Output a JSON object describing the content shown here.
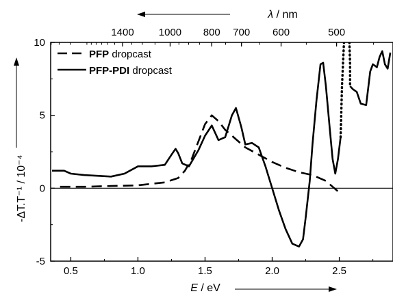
{
  "chart_data": {
    "type": "line",
    "title": "",
    "xlabel": {
      "italic": "E",
      "rest": " / eV"
    },
    "ylabel": "-ΔT.T⁻¹ / 10⁻⁴",
    "top_axis_label": {
      "italic": "λ",
      "rest": " / nm"
    },
    "xlim": [
      0.35,
      2.9
    ],
    "ylim": [
      -5,
      10
    ],
    "x_ticks": [
      0.5,
      1.0,
      1.5,
      2.0,
      2.5
    ],
    "x_tick_labels": [
      "0.5",
      "1.0",
      "1.5",
      "2.0",
      "2.5"
    ],
    "y_ticks": [
      -5,
      0,
      5,
      10
    ],
    "y_tick_labels": [
      "-5",
      "0",
      "5",
      "10"
    ],
    "top_ticks_nm": [
      1400,
      1000,
      800,
      700,
      600,
      500
    ],
    "top_tick_labels": [
      "1400",
      "1000",
      "800",
      "700",
      "600",
      "500"
    ],
    "zero_line": true,
    "legend_position": "top-left",
    "series": [
      {
        "name": "PFP dropcast",
        "name_bold": "PFP",
        "name_rest": " dropcast",
        "style": "dashed",
        "x": [
          0.42,
          0.6,
          0.8,
          1.0,
          1.1,
          1.2,
          1.3,
          1.35,
          1.4,
          1.45,
          1.5,
          1.55,
          1.6,
          1.65,
          1.7,
          1.75,
          1.8,
          1.9,
          2.0,
          2.1,
          2.2,
          2.3,
          2.4,
          2.45,
          2.5
        ],
        "y": [
          0.1,
          0.1,
          0.15,
          0.2,
          0.3,
          0.4,
          0.7,
          1.2,
          2.0,
          3.2,
          4.4,
          5.0,
          4.6,
          4.0,
          3.6,
          3.2,
          2.8,
          2.3,
          1.8,
          1.4,
          1.1,
          0.9,
          0.5,
          0.1,
          -0.3
        ]
      },
      {
        "name": "PFP-PDI dropcast",
        "name_bold": "PFP-PDI",
        "name_rest": " dropcast",
        "style": "solid",
        "x": [
          0.36,
          0.45,
          0.5,
          0.6,
          0.7,
          0.8,
          0.9,
          1.0,
          1.1,
          1.2,
          1.25,
          1.28,
          1.3,
          1.33,
          1.38,
          1.45,
          1.5,
          1.55,
          1.6,
          1.65,
          1.7,
          1.73,
          1.77,
          1.8,
          1.85,
          1.9,
          1.95,
          2.0,
          2.05,
          2.1,
          2.15,
          2.2,
          2.23,
          2.25,
          2.28,
          2.3,
          2.33,
          2.36,
          2.38,
          2.4,
          2.43,
          2.45,
          2.47,
          2.49,
          2.51
        ],
        "y": [
          1.2,
          1.2,
          1.0,
          0.9,
          0.85,
          0.8,
          1.0,
          1.5,
          1.5,
          1.6,
          2.3,
          2.7,
          2.4,
          1.7,
          1.5,
          2.6,
          3.6,
          4.3,
          3.3,
          3.5,
          5.0,
          5.5,
          4.2,
          3.0,
          3.1,
          2.8,
          1.5,
          0.0,
          -1.5,
          -2.8,
          -3.8,
          -4.0,
          -3.5,
          -2.0,
          0.5,
          3.0,
          6.0,
          8.5,
          8.6,
          7.0,
          4.0,
          2.0,
          1.0,
          2.0,
          3.5
        ]
      },
      {
        "name": "",
        "style": "solid",
        "x": [
          2.58,
          2.6,
          2.63,
          2.66,
          2.7,
          2.73,
          2.75,
          2.78,
          2.8,
          2.82,
          2.84,
          2.86,
          2.88
        ],
        "y": [
          7.0,
          6.8,
          6.6,
          5.8,
          5.7,
          8.0,
          8.5,
          8.3,
          9.0,
          9.4,
          8.5,
          8.2,
          9.3
        ]
      },
      {
        "name": "",
        "style": "dotted",
        "x": [
          2.51,
          2.52,
          2.535
        ],
        "y": [
          3.5,
          7.0,
          10.0
        ]
      },
      {
        "name": "",
        "style": "dotted",
        "x": [
          2.575,
          2.58,
          2.58
        ],
        "y": [
          10.0,
          8.5,
          7.0
        ]
      }
    ]
  }
}
